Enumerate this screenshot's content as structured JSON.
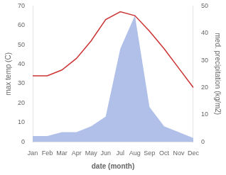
{
  "chart_data": {
    "type": "line",
    "xlabel": "date (month)",
    "ylabel": "max temp (C)",
    "y2label": "med. precipitation (kg/m2)",
    "categories": [
      "Jan",
      "Feb",
      "Mar",
      "Apr",
      "May",
      "Jun",
      "Jul",
      "Aug",
      "Sep",
      "Oct",
      "Nov",
      "Dec"
    ],
    "series": [
      {
        "type": "area",
        "color": "#b0c0e8",
        "values": [
          3,
          3,
          5,
          5,
          8,
          13,
          48,
          65,
          18,
          8,
          5,
          2
        ]
      },
      {
        "type": "line",
        "color": "#cc3333",
        "values": [
          34,
          34,
          37,
          43,
          52,
          63,
          67,
          65,
          57,
          48,
          38,
          28
        ]
      }
    ],
    "ylim": [
      0,
      70
    ],
    "yticks": [
      0,
      10,
      20,
      30,
      40,
      50,
      60,
      70
    ],
    "y2lim": [
      0,
      50
    ],
    "y2ticks": [
      0,
      10,
      20,
      30,
      40,
      50
    ],
    "grid": false
  }
}
